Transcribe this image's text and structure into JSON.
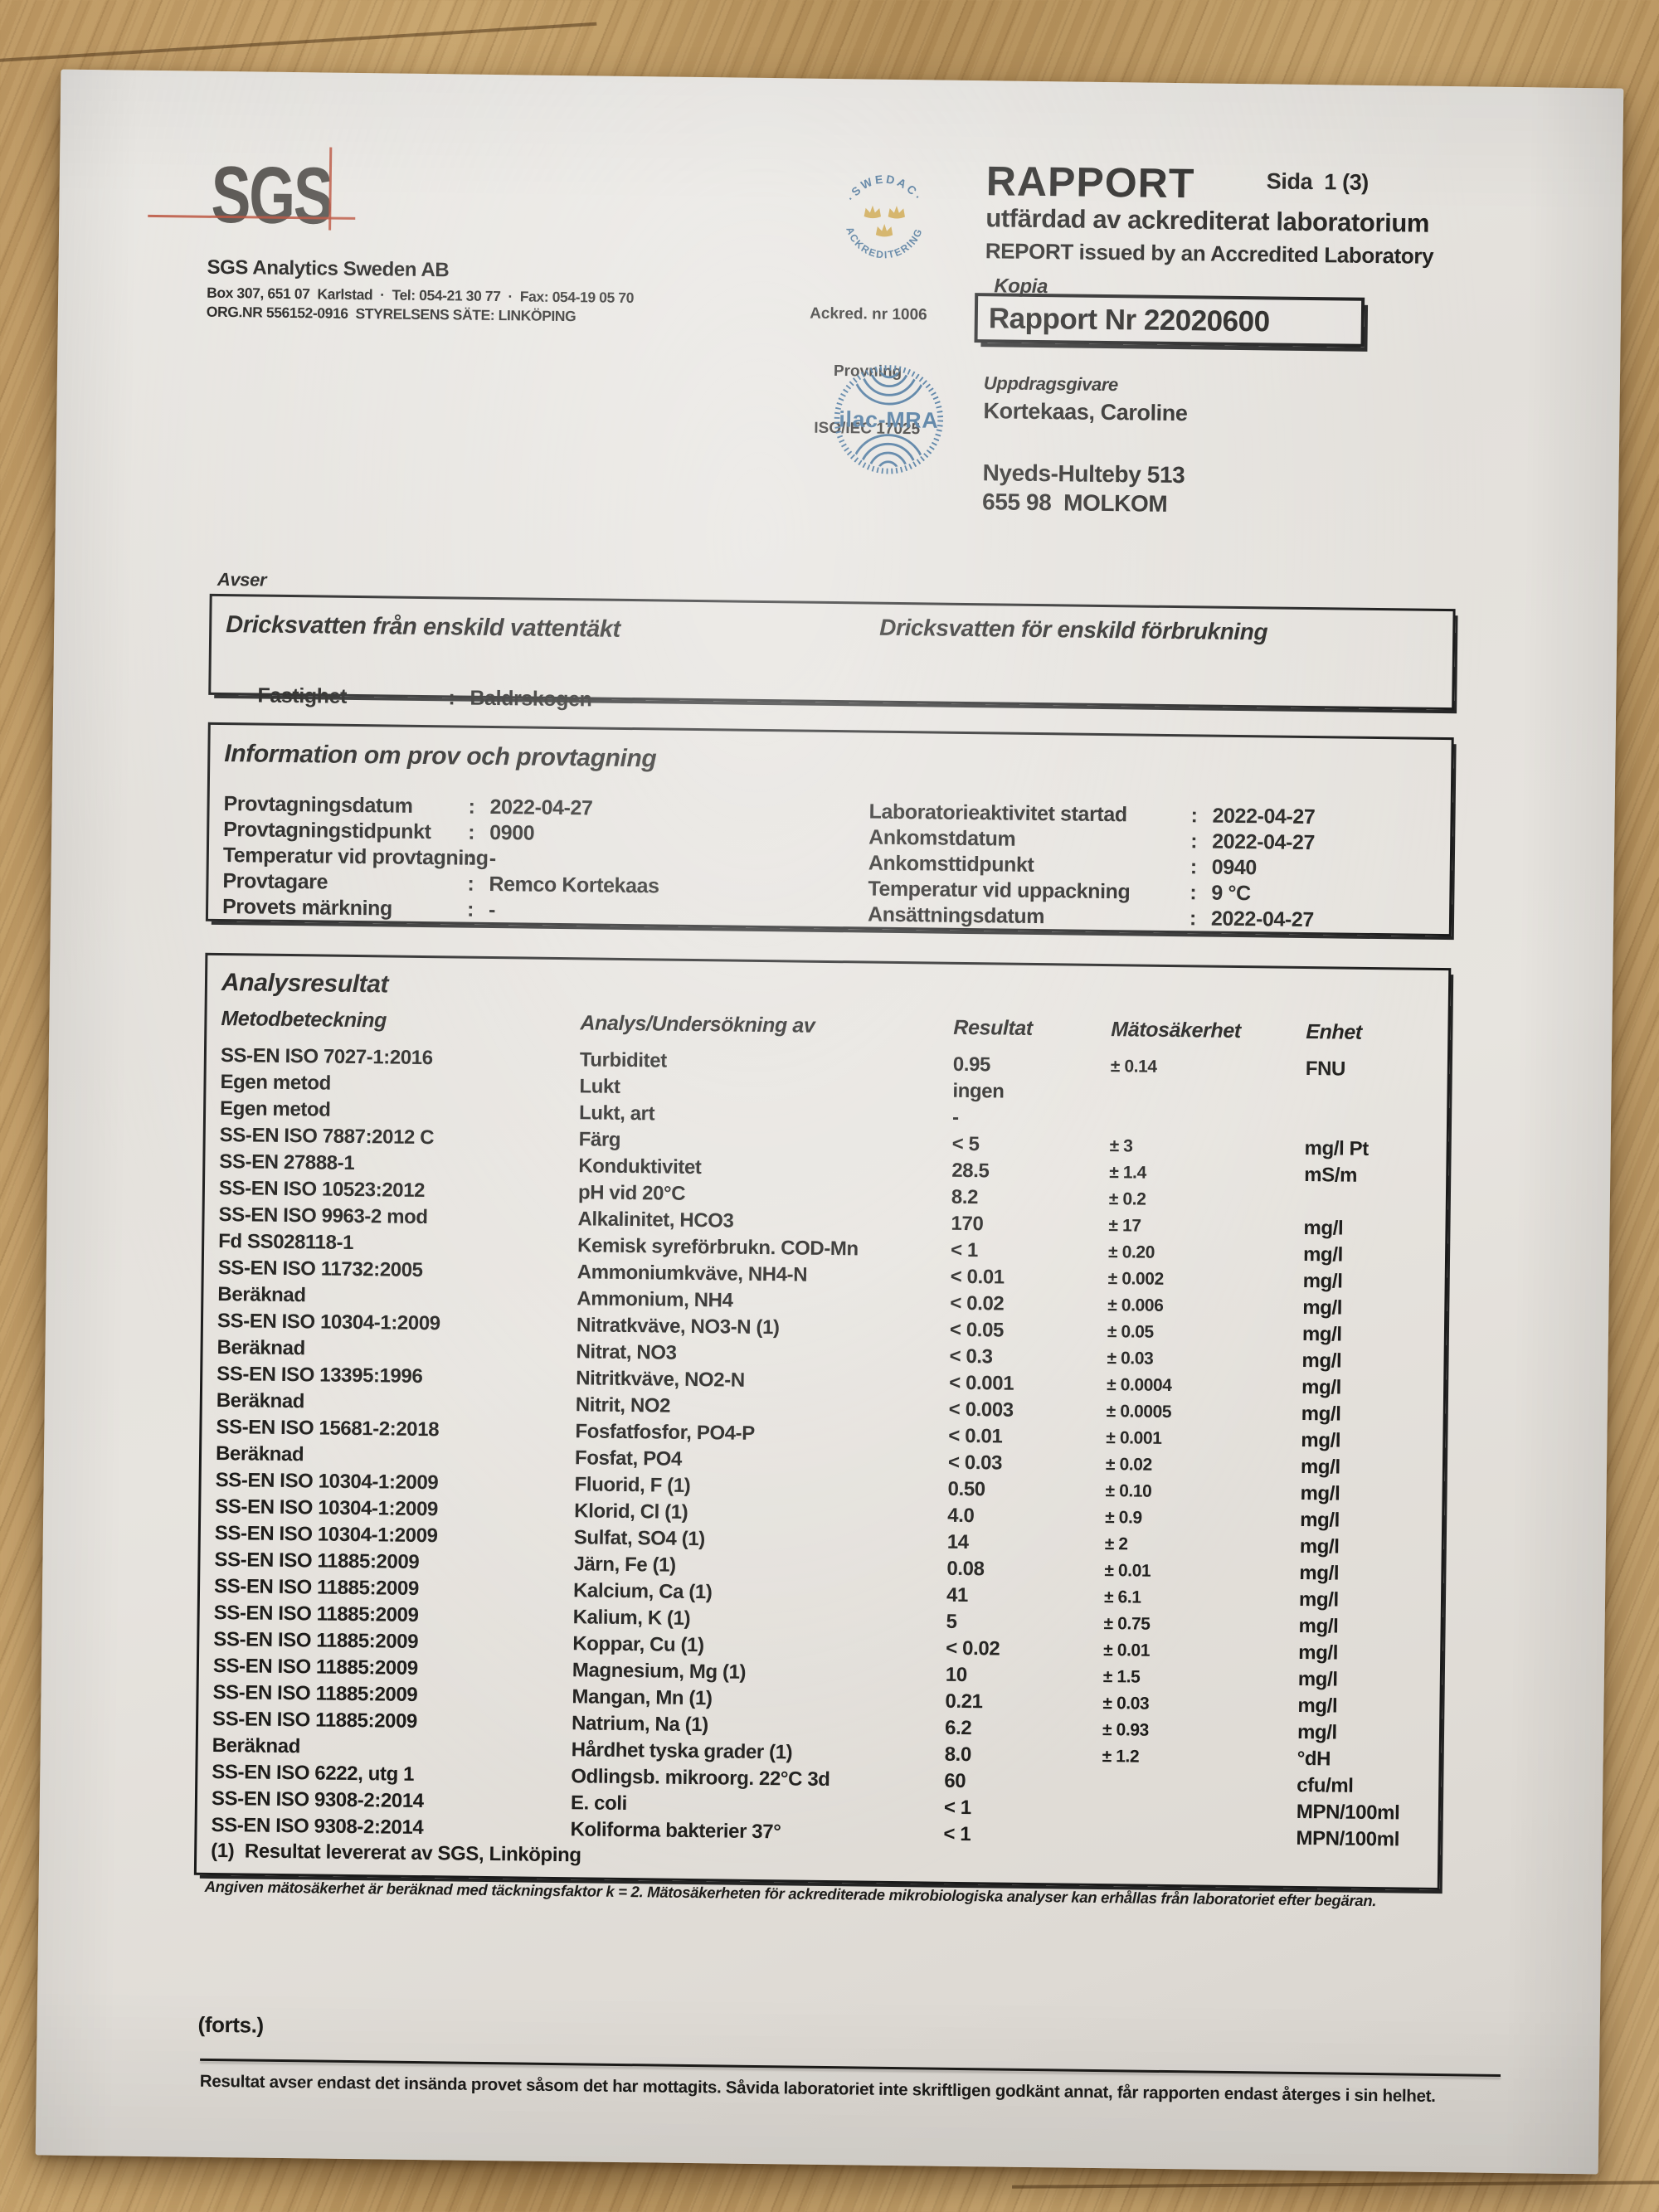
{
  "misc": {
    "colon": ":"
  },
  "header": {
    "logo_text": "SGS",
    "company": {
      "name": "SGS Analytics Sweden AB",
      "address_line1": "Box 307, 651 07  Karlstad  ·  Tel: 054-21 30 77  ·  Fax: 054-19 05 70",
      "address_line2": "ORG.NR 556152-0916  STYRELSENS SÄTE: LINKÖPING"
    },
    "accreditation": {
      "swedac_top": "·SWEDAC·",
      "swedac_bottom": "ACKREDITERING",
      "line1": "Ackred. nr 1006",
      "line2": "Provning",
      "line3": "ISO/IEC 17025",
      "ilac_text": "ilac-MRA"
    },
    "report": {
      "title": "RAPPORT",
      "page": "Sida  1 (3)",
      "subtitle_sv": "utfärdad av ackrediterat laboratorium",
      "subtitle_en": "REPORT issued by an Accredited Laboratory",
      "kopia_label": "Kopia",
      "report_nr": "Rapport Nr 22020600"
    },
    "client": {
      "label": "Uppdragsgivare",
      "name": "Kortekaas, Caroline",
      "address_line1": "Nyeds-Hulteby 513",
      "address_line2": "655 98  MOLKOM"
    }
  },
  "avser": {
    "label": "Avser",
    "title_left": "Dricksvatten från enskild vattentäkt",
    "title_right": "Dricksvatten för enskild förbrukning",
    "fastighet_label": "Fastighet",
    "fastighet_value": "Baldrskogen"
  },
  "sample_info": {
    "title": "Information om prov och provtagning",
    "left_rows": [
      {
        "label": "Provtagningsdatum",
        "value": "2022-04-27"
      },
      {
        "label": "Provtagningstidpunkt",
        "value": "0900"
      },
      {
        "label": "Temperatur vid provtagning",
        "value": "-"
      },
      {
        "label": "Provtagare",
        "value": "Remco Kortekaas"
      },
      {
        "label": "Provets märkning",
        "value": "-"
      }
    ],
    "right_rows": [
      {
        "label": "Laboratorieaktivitet startad",
        "value": "2022-04-27"
      },
      {
        "label": "Ankomstdatum",
        "value": "2022-04-27"
      },
      {
        "label": "Ankomsttidpunkt",
        "value": "0940"
      },
      {
        "label": "Temperatur vid uppackning",
        "value": "9 °C"
      },
      {
        "label": "Ansättningsdatum",
        "value": "2022-04-27"
      }
    ]
  },
  "results": {
    "title": "Analysresultat",
    "columns": [
      "Metodbeteckning",
      "Analys/Undersökning av",
      "Resultat",
      "Mätosäkerhet",
      "Enhet"
    ],
    "rows": [
      [
        "SS-EN ISO 7027-1:2016",
        "Turbiditet",
        "0.95",
        "± 0.14",
        "FNU"
      ],
      [
        "Egen metod",
        "Lukt",
        "ingen",
        "",
        ""
      ],
      [
        "Egen metod",
        "Lukt, art",
        "-",
        "",
        ""
      ],
      [
        "SS-EN ISO 7887:2012 C",
        "Färg",
        "< 5",
        "± 3",
        "mg/l Pt"
      ],
      [
        "SS-EN 27888-1",
        "Konduktivitet",
        "28.5",
        "± 1.4",
        "mS/m"
      ],
      [
        "SS-EN ISO 10523:2012",
        "pH vid 20°C",
        "8.2",
        "± 0.2",
        ""
      ],
      [
        "SS-EN ISO 9963-2 mod",
        "Alkalinitet, HCO3",
        "170",
        "± 17",
        "mg/l"
      ],
      [
        "Fd SS028118-1",
        "Kemisk syreförbrukn. COD-Mn",
        "< 1",
        "± 0.20",
        "mg/l"
      ],
      [
        "SS-EN ISO 11732:2005",
        "Ammoniumkväve, NH4-N",
        "< 0.01",
        "± 0.002",
        "mg/l"
      ],
      [
        "Beräknad",
        "Ammonium, NH4",
        "< 0.02",
        "± 0.006",
        "mg/l"
      ],
      [
        "SS-EN ISO 10304-1:2009",
        "Nitratkväve, NO3-N (1)",
        "< 0.05",
        "± 0.05",
        "mg/l"
      ],
      [
        "Beräknad",
        "Nitrat, NO3",
        "< 0.3",
        "± 0.03",
        "mg/l"
      ],
      [
        "SS-EN ISO 13395:1996",
        "Nitritkväve, NO2-N",
        "< 0.001",
        "± 0.0004",
        "mg/l"
      ],
      [
        "Beräknad",
        "Nitrit, NO2",
        "< 0.003",
        "± 0.0005",
        "mg/l"
      ],
      [
        "SS-EN ISO 15681-2:2018",
        "Fosfatfosfor, PO4-P",
        "< 0.01",
        "± 0.001",
        "mg/l"
      ],
      [
        "Beräknad",
        "Fosfat, PO4",
        "< 0.03",
        "± 0.02",
        "mg/l"
      ],
      [
        "SS-EN ISO 10304-1:2009",
        "Fluorid, F (1)",
        "0.50",
        "± 0.10",
        "mg/l"
      ],
      [
        "SS-EN ISO 10304-1:2009",
        "Klorid, Cl (1)",
        "4.0",
        "± 0.9",
        "mg/l"
      ],
      [
        "SS-EN ISO 10304-1:2009",
        "Sulfat, SO4 (1)",
        "14",
        "± 2",
        "mg/l"
      ],
      [
        "SS-EN ISO 11885:2009",
        "Järn, Fe (1)",
        "0.08",
        "± 0.01",
        "mg/l"
      ],
      [
        "SS-EN ISO 11885:2009",
        "Kalcium, Ca (1)",
        "41",
        "± 6.1",
        "mg/l"
      ],
      [
        "SS-EN ISO 11885:2009",
        "Kalium, K (1)",
        "5",
        "± 0.75",
        "mg/l"
      ],
      [
        "SS-EN ISO 11885:2009",
        "Koppar, Cu (1)",
        "< 0.02",
        "± 0.01",
        "mg/l"
      ],
      [
        "SS-EN ISO 11885:2009",
        "Magnesium, Mg (1)",
        "10",
        "± 1.5",
        "mg/l"
      ],
      [
        "SS-EN ISO 11885:2009",
        "Mangan, Mn (1)",
        "0.21",
        "± 0.03",
        "mg/l"
      ],
      [
        "SS-EN ISO 11885:2009",
        "Natrium, Na (1)",
        "6.2",
        "± 0.93",
        "mg/l"
      ],
      [
        "Beräknad",
        "Hårdhet tyska grader (1)",
        "8.0",
        "± 1.2",
        "°dH"
      ],
      [
        "SS-EN ISO 6222, utg 1",
        "Odlingsb. mikroorg. 22°C 3d",
        "60",
        "",
        "cfu/ml"
      ],
      [
        "SS-EN ISO 9308-2:2014",
        "E. coli",
        "< 1",
        "",
        "MPN/100ml"
      ],
      [
        "SS-EN ISO 9308-2:2014",
        "Koliforma bakterier 37°",
        "< 1",
        "",
        "MPN/100ml"
      ]
    ],
    "footnote": "(1)  Resultat levererat av SGS, Linköping"
  },
  "notes": {
    "uncertainty_note": "Angiven mätosäkerhet är beräknad med täckningsfaktor k = 2. Mätosäkerheten för ackrediterade mikrobiologiska analyser kan erhållas från laboratoriet efter begäran.",
    "forts": "(forts.)",
    "footer": "Resultat avser endast det insända provet såsom det har mottagits. Såvida laboratoriet inte skriftligen godkänt annat, får rapporten endast återges i sin helhet."
  }
}
